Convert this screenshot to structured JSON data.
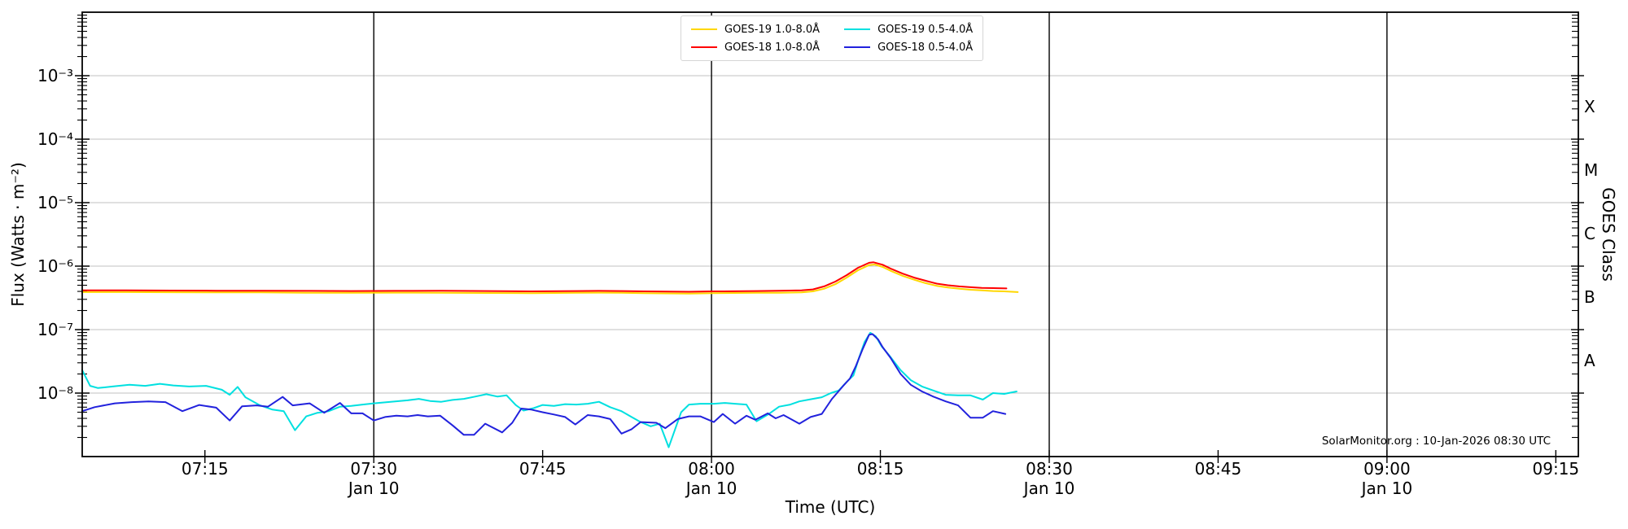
{
  "figure": {
    "watermark": "SolarMonitor.org : 10-Jan-2026 08:30 UTC",
    "background": "#ffffff"
  },
  "axes": {
    "x": {
      "title": "Time (UTC)",
      "major_ticks": [
        {
          "minutes": 15,
          "label": "07:15"
        },
        {
          "minutes": 30,
          "label": "07:30",
          "date_label": "Jan 10"
        },
        {
          "minutes": 45,
          "label": "07:45"
        },
        {
          "minutes": 60,
          "label": "08:00",
          "date_label": "Jan 10"
        },
        {
          "minutes": 75,
          "label": "08:15"
        },
        {
          "minutes": 90,
          "label": "08:30",
          "date_label": "Jan 10"
        },
        {
          "minutes": 105,
          "label": "08:45"
        },
        {
          "minutes": 120,
          "label": "09:00",
          "date_label": "Jan 10"
        },
        {
          "minutes": 135,
          "label": "09:15"
        }
      ]
    },
    "y_left": {
      "title": "Flux (Watts · m⁻²)",
      "tick_labels": [
        {
          "exp": -3,
          "label": "10⁻³"
        },
        {
          "exp": -4,
          "label": "10⁻⁴"
        },
        {
          "exp": -5,
          "label": "10⁻⁵"
        },
        {
          "exp": -6,
          "label": "10⁻⁶"
        },
        {
          "exp": -7,
          "label": "10⁻⁷"
        },
        {
          "exp": -8,
          "label": "10⁻⁸"
        }
      ]
    },
    "y_right": {
      "title": "GOES Class",
      "class_labels": [
        {
          "label": "X",
          "exp_center": -3.5
        },
        {
          "label": "M",
          "exp_center": -4.5
        },
        {
          "label": "C",
          "exp_center": -5.5
        },
        {
          "label": "B",
          "exp_center": -6.5
        },
        {
          "label": "A",
          "exp_center": -7.5
        }
      ]
    }
  },
  "legend": {
    "items": [
      {
        "label": "GOES-19 1.0-8.0Å",
        "color": "#ffd700"
      },
      {
        "label": "GOES-18 1.0-8.0Å",
        "color": "#ff0000"
      },
      {
        "label": "GOES-19 0.5-4.0Å",
        "color": "#00e0e0"
      },
      {
        "label": "GOES-18 0.5-4.0Å",
        "color": "#2222dd"
      }
    ]
  },
  "chart_data": {
    "type": "line",
    "title": "",
    "xlabel": "Time (UTC)",
    "ylabel": "Flux (Watts · m⁻²)",
    "ylabel_right": "GOES Class",
    "y_scale": "log",
    "ylim_exp": [
      -9,
      -2
    ],
    "x_unit": "minutes after 07:00 UTC, 10-Jan-2026",
    "xlim_minutes": [
      4.1,
      137.0
    ],
    "gridlines_exp": [
      -3,
      -4,
      -5,
      -6,
      -7,
      -8
    ],
    "vertical_lines_minutes": [
      30,
      60,
      90,
      120
    ],
    "grid_color": "#c0c0c0",
    "series": [
      {
        "name": "GOES-19 1.0-8.0Å",
        "color": "#ffd700",
        "points": [
          [
            4.1,
            3.9e-07
          ],
          [
            8,
            3.9e-07
          ],
          [
            12,
            3.88e-07
          ],
          [
            16,
            3.85e-07
          ],
          [
            20,
            3.85e-07
          ],
          [
            24,
            3.8e-07
          ],
          [
            28,
            3.8e-07
          ],
          [
            32,
            3.82e-07
          ],
          [
            36,
            3.8e-07
          ],
          [
            40,
            3.78e-07
          ],
          [
            44,
            3.75e-07
          ],
          [
            48,
            3.8e-07
          ],
          [
            50,
            3.82e-07
          ],
          [
            52,
            3.8e-07
          ],
          [
            54,
            3.75e-07
          ],
          [
            56,
            3.72e-07
          ],
          [
            58,
            3.7e-07
          ],
          [
            60,
            3.75e-07
          ],
          [
            62,
            3.78e-07
          ],
          [
            64,
            3.8e-07
          ],
          [
            66,
            3.8e-07
          ],
          [
            68,
            3.85e-07
          ],
          [
            69,
            4e-07
          ],
          [
            70,
            4.4e-07
          ],
          [
            71,
            5.2e-07
          ],
          [
            72,
            6.6e-07
          ],
          [
            73,
            8.6e-07
          ],
          [
            74,
            1.04e-06
          ],
          [
            74.5,
            1.06e-06
          ],
          [
            75.2,
            9.7e-07
          ],
          [
            76,
            8.3e-07
          ],
          [
            77,
            7e-07
          ],
          [
            78,
            6.1e-07
          ],
          [
            79,
            5.4e-07
          ],
          [
            80,
            4.9e-07
          ],
          [
            81,
            4.6e-07
          ],
          [
            82,
            4.4e-07
          ],
          [
            83,
            4.25e-07
          ],
          [
            84,
            4.15e-07
          ],
          [
            85,
            4.05e-07
          ],
          [
            86,
            4e-07
          ],
          [
            87.2,
            3.9e-07
          ]
        ]
      },
      {
        "name": "GOES-18 1.0-8.0Å",
        "color": "#ff0000",
        "points": [
          [
            4.1,
            4.15e-07
          ],
          [
            8,
            4.15e-07
          ],
          [
            12,
            4.12e-07
          ],
          [
            16,
            4.1e-07
          ],
          [
            20,
            4.1e-07
          ],
          [
            24,
            4.08e-07
          ],
          [
            28,
            4.05e-07
          ],
          [
            32,
            4.08e-07
          ],
          [
            36,
            4.1e-07
          ],
          [
            40,
            4.05e-07
          ],
          [
            44,
            4e-07
          ],
          [
            48,
            4.05e-07
          ],
          [
            50,
            4.08e-07
          ],
          [
            52,
            4.05e-07
          ],
          [
            54,
            4e-07
          ],
          [
            56,
            3.98e-07
          ],
          [
            58,
            3.95e-07
          ],
          [
            60,
            4e-07
          ],
          [
            62,
            4.02e-07
          ],
          [
            64,
            4.05e-07
          ],
          [
            66,
            4.1e-07
          ],
          [
            68,
            4.15e-07
          ],
          [
            69,
            4.3e-07
          ],
          [
            70,
            4.8e-07
          ],
          [
            71,
            5.7e-07
          ],
          [
            72,
            7.2e-07
          ],
          [
            73,
            9.4e-07
          ],
          [
            74,
            1.13e-06
          ],
          [
            74.4,
            1.15e-06
          ],
          [
            75.2,
            1.05e-06
          ],
          [
            76,
            9e-07
          ],
          [
            77,
            7.6e-07
          ],
          [
            78,
            6.6e-07
          ],
          [
            79,
            5.9e-07
          ],
          [
            80,
            5.3e-07
          ],
          [
            81,
            5e-07
          ],
          [
            82,
            4.8e-07
          ],
          [
            83,
            4.65e-07
          ],
          [
            84,
            4.55e-07
          ],
          [
            85,
            4.5e-07
          ],
          [
            86.2,
            4.45e-07
          ]
        ]
      },
      {
        "name": "GOES-19 0.5-4.0Å",
        "color": "#00e0e0",
        "points": [
          [
            4.1,
            2.3e-08
          ],
          [
            4.8,
            1.3e-08
          ],
          [
            5.5,
            1.2e-08
          ],
          [
            6.8,
            1.27e-08
          ],
          [
            8.3,
            1.35e-08
          ],
          [
            9.7,
            1.3e-08
          ],
          [
            11,
            1.4e-08
          ],
          [
            12.2,
            1.32e-08
          ],
          [
            13.6,
            1.27e-08
          ],
          [
            15.1,
            1.3e-08
          ],
          [
            16.5,
            1.13e-08
          ],
          [
            17.2,
            9.4e-09
          ],
          [
            17.9,
            1.25e-08
          ],
          [
            18.6,
            8.6e-09
          ],
          [
            19.9,
            6.4e-09
          ],
          [
            21,
            5.5e-09
          ],
          [
            22,
            5.2e-09
          ],
          [
            23,
            2.6e-09
          ],
          [
            24,
            4.3e-09
          ],
          [
            25,
            4.9e-09
          ],
          [
            26,
            5.2e-09
          ],
          [
            27,
            6.1e-09
          ],
          [
            28,
            6.3e-09
          ],
          [
            29,
            6.6e-09
          ],
          [
            30,
            6.9e-09
          ],
          [
            31.5,
            7.3e-09
          ],
          [
            33,
            7.7e-09
          ],
          [
            34,
            8.1e-09
          ],
          [
            35,
            7.5e-09
          ],
          [
            36,
            7.3e-09
          ],
          [
            37,
            7.8e-09
          ],
          [
            38,
            8.1e-09
          ],
          [
            39,
            8.8e-09
          ],
          [
            40,
            9.6e-09
          ],
          [
            41,
            8.8e-09
          ],
          [
            41.8,
            9.2e-09
          ],
          [
            42.6,
            6.5e-09
          ],
          [
            43.3,
            5.3e-09
          ],
          [
            44.2,
            5.8e-09
          ],
          [
            45,
            6.5e-09
          ],
          [
            46,
            6.3e-09
          ],
          [
            47,
            6.7e-09
          ],
          [
            48,
            6.6e-09
          ],
          [
            49,
            6.8e-09
          ],
          [
            50,
            7.3e-09
          ],
          [
            51,
            6e-09
          ],
          [
            52,
            5.2e-09
          ],
          [
            52.9,
            4.2e-09
          ],
          [
            53.7,
            3.5e-09
          ],
          [
            54.6,
            3e-09
          ],
          [
            55.4,
            3.3e-09
          ],
          [
            56.2,
            1.4e-09
          ],
          [
            57.3,
            5e-09
          ],
          [
            58,
            6.6e-09
          ],
          [
            59,
            6.8e-09
          ],
          [
            60.2,
            6.8e-09
          ],
          [
            61.2,
            7e-09
          ],
          [
            62.1,
            6.8e-09
          ],
          [
            63.1,
            6.6e-09
          ],
          [
            64,
            3.6e-09
          ],
          [
            65.1,
            4.7e-09
          ],
          [
            66,
            6.1e-09
          ],
          [
            67,
            6.6e-09
          ],
          [
            67.8,
            7.4e-09
          ],
          [
            68.8,
            8e-09
          ],
          [
            69.8,
            8.6e-09
          ],
          [
            70.6,
            1e-08
          ],
          [
            71.3,
            1.1e-08
          ],
          [
            72,
            1.5e-08
          ],
          [
            72.6,
            1.9e-08
          ],
          [
            73.1,
            3.6e-08
          ],
          [
            73.6,
            6.4e-08
          ],
          [
            74.1,
            8.9e-08
          ],
          [
            74.6,
            7.8e-08
          ],
          [
            75.1,
            5.5e-08
          ],
          [
            75.8,
            3.9e-08
          ],
          [
            76.8,
            2.3e-08
          ],
          [
            77.7,
            1.6e-08
          ],
          [
            78.7,
            1.27e-08
          ],
          [
            79.7,
            1.1e-08
          ],
          [
            80.8,
            9.4e-09
          ],
          [
            81.9,
            9.2e-09
          ],
          [
            83,
            9.2e-09
          ],
          [
            84.1,
            7.9e-09
          ],
          [
            85,
            1e-08
          ],
          [
            86,
            9.7e-09
          ],
          [
            87.1,
            1.06e-08
          ]
        ]
      },
      {
        "name": "GOES-18 0.5-4.0Å",
        "color": "#2222dd",
        "points": [
          [
            4.1,
            5.2e-09
          ],
          [
            5.2,
            6e-09
          ],
          [
            7,
            6.9e-09
          ],
          [
            8.5,
            7.2e-09
          ],
          [
            10,
            7.4e-09
          ],
          [
            11.5,
            7.2e-09
          ],
          [
            13,
            5.2e-09
          ],
          [
            14.5,
            6.5e-09
          ],
          [
            16,
            5.9e-09
          ],
          [
            17.2,
            3.7e-09
          ],
          [
            18.3,
            6.2e-09
          ],
          [
            19.6,
            6.4e-09
          ],
          [
            20.6,
            6.1e-09
          ],
          [
            21.9,
            8.7e-09
          ],
          [
            22.8,
            6.4e-09
          ],
          [
            24.3,
            6.9e-09
          ],
          [
            25.6,
            4.9e-09
          ],
          [
            27,
            7e-09
          ],
          [
            28,
            4.8e-09
          ],
          [
            29,
            4.8e-09
          ],
          [
            30,
            3.7e-09
          ],
          [
            31,
            4.2e-09
          ],
          [
            32,
            4.4e-09
          ],
          [
            33,
            4.3e-09
          ],
          [
            33.9,
            4.5e-09
          ],
          [
            34.8,
            4.3e-09
          ],
          [
            35.9,
            4.4e-09
          ],
          [
            37,
            3.1e-09
          ],
          [
            38,
            2.2e-09
          ],
          [
            38.9,
            2.2e-09
          ],
          [
            39.9,
            3.3e-09
          ],
          [
            41.4,
            2.4e-09
          ],
          [
            42.3,
            3.4e-09
          ],
          [
            43.1,
            5.7e-09
          ],
          [
            44,
            5.5e-09
          ],
          [
            45,
            5e-09
          ],
          [
            46,
            4.6e-09
          ],
          [
            47,
            4.2e-09
          ],
          [
            47.9,
            3.2e-09
          ],
          [
            49,
            4.5e-09
          ],
          [
            50,
            4.3e-09
          ],
          [
            51,
            3.9e-09
          ],
          [
            52,
            2.3e-09
          ],
          [
            52.9,
            2.7e-09
          ],
          [
            53.7,
            3.5e-09
          ],
          [
            55.1,
            3.4e-09
          ],
          [
            55.9,
            2.8e-09
          ],
          [
            57,
            3.9e-09
          ],
          [
            58,
            4.3e-09
          ],
          [
            59,
            4.3e-09
          ],
          [
            60.2,
            3.5e-09
          ],
          [
            61,
            4.7e-09
          ],
          [
            62.1,
            3.3e-09
          ],
          [
            63.1,
            4.4e-09
          ],
          [
            63.9,
            3.8e-09
          ],
          [
            65,
            4.8e-09
          ],
          [
            65.7,
            4e-09
          ],
          [
            66.4,
            4.5e-09
          ],
          [
            67.8,
            3.3e-09
          ],
          [
            68.8,
            4.2e-09
          ],
          [
            69.8,
            4.7e-09
          ],
          [
            70.7,
            8.1e-09
          ],
          [
            71.7,
            1.3e-08
          ],
          [
            72.3,
            1.7e-08
          ],
          [
            72.8,
            2.6e-08
          ],
          [
            73.4,
            4.8e-08
          ],
          [
            74,
            8.3e-08
          ],
          [
            74.3,
            8.5e-08
          ],
          [
            74.8,
            7e-08
          ],
          [
            75.2,
            5.3e-08
          ],
          [
            75.9,
            3.6e-08
          ],
          [
            76.8,
            2e-08
          ],
          [
            77.7,
            1.35e-08
          ],
          [
            78.7,
            1.06e-08
          ],
          [
            79.7,
            8.8e-09
          ],
          [
            80.8,
            7.4e-09
          ],
          [
            81.9,
            6.4e-09
          ],
          [
            83,
            4.1e-09
          ],
          [
            84.1,
            4.1e-09
          ],
          [
            85,
            5.2e-09
          ],
          [
            86.1,
            4.7e-09
          ]
        ]
      }
    ]
  }
}
